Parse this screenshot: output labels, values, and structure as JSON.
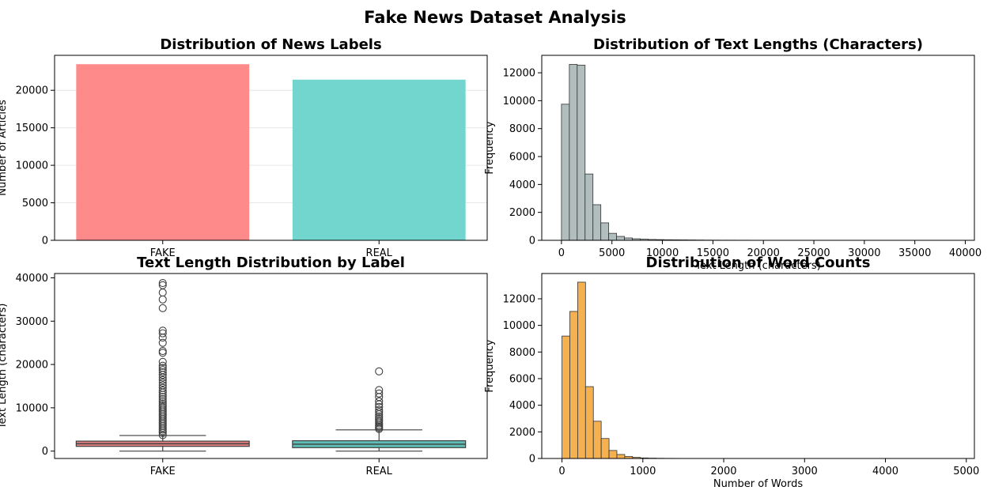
{
  "figure": {
    "title": "Fake News Dataset Analysis"
  },
  "chart_data": [
    {
      "type": "bar",
      "title": "Distribution of News Labels",
      "xlabel": "",
      "ylabel": "Number of Articles",
      "categories": [
        "FAKE",
        "REAL"
      ],
      "values": [
        23480,
        21420
      ],
      "colors": [
        "#ff8a8a",
        "#72d6cf"
      ],
      "ylim": [
        0,
        24660
      ],
      "yticks": [
        0,
        5000,
        10000,
        15000,
        20000
      ],
      "grid": "y"
    },
    {
      "type": "bar",
      "title": "Distribution of Text Lengths (Characters)",
      "xlabel": "Text Length (characters)",
      "ylabel": "Frequency",
      "bin_start": 0,
      "bin_width": 780,
      "values": [
        9750,
        12600,
        12550,
        4750,
        2550,
        1250,
        500,
        280,
        170,
        110,
        80,
        60,
        50,
        40,
        35,
        30,
        25,
        20,
        15,
        12,
        10,
        10,
        8,
        8,
        6,
        5,
        5,
        4,
        4,
        3,
        3,
        2,
        2,
        2,
        2,
        2,
        1,
        1,
        1,
        1,
        1,
        1,
        1,
        1,
        1,
        1,
        1,
        1,
        1,
        1
      ],
      "color": "#b2bebd",
      "xlim": [
        -1950,
        40900
      ],
      "ylim": [
        0,
        13250
      ],
      "xticks": [
        0,
        5000,
        10000,
        15000,
        20000,
        25000,
        30000,
        35000,
        40000
      ],
      "yticks": [
        0,
        2000,
        4000,
        6000,
        8000,
        10000,
        12000
      ]
    },
    {
      "type": "box",
      "title": "Text Length Distribution by Label",
      "xlabel": "",
      "ylabel": "Text Length (characters)",
      "categories": [
        "FAKE",
        "REAL"
      ],
      "colors": [
        "#e58080",
        "#5ebdb5"
      ],
      "boxes": [
        {
          "min": 0,
          "q1": 1100,
          "median": 1700,
          "q3": 2300,
          "whisker_high": 3600,
          "outliers": [
            3700,
            4200,
            4600,
            5000,
            5400,
            5800,
            6200,
            6600,
            7000,
            7400,
            7800,
            8200,
            8600,
            9000,
            9400,
            9800,
            10200,
            10600,
            11000,
            11500,
            12000,
            12500,
            13000,
            13500,
            14000,
            14600,
            15200,
            15800,
            16400,
            17000,
            17600,
            18200,
            18700,
            19200,
            19700,
            20600,
            22700,
            23100,
            25000,
            26200,
            27200,
            27800,
            33000,
            35000,
            36600,
            38300,
            38800
          ]
        },
        {
          "min": 0,
          "q1": 800,
          "median": 1600,
          "q3": 2400,
          "whisker_high": 4900,
          "outliers": [
            5100,
            5400,
            5700,
            6000,
            6400,
            6800,
            7200,
            7600,
            8000,
            8500,
            9000,
            9500,
            10200,
            10800,
            11500,
            12500,
            13300,
            14100,
            18400
          ]
        }
      ],
      "ylim": [
        -1700,
        41000
      ],
      "yticks": [
        0,
        10000,
        20000,
        30000,
        40000
      ]
    },
    {
      "type": "bar",
      "title": "Distribution of Word Counts",
      "xlabel": "Number of Words",
      "ylabel": "Frequency",
      "bin_start": 0,
      "bin_width": 97,
      "values": [
        9200,
        11050,
        13250,
        5400,
        2800,
        1500,
        600,
        300,
        150,
        80,
        40,
        25,
        15,
        10,
        8,
        6,
        5,
        4,
        3,
        3,
        2,
        2,
        2,
        1,
        1,
        1,
        1,
        1,
        1,
        1,
        1,
        1,
        1,
        1,
        1,
        1,
        1,
        1,
        1,
        1,
        1,
        1,
        1,
        1,
        1,
        1,
        1,
        1,
        1,
        1
      ],
      "color": "#f5b04f",
      "xlim": [
        -250,
        5100
      ],
      "ylim": [
        0,
        13900
      ],
      "xticks": [
        0,
        1000,
        2000,
        3000,
        4000,
        5000
      ],
      "yticks": [
        0,
        2000,
        4000,
        6000,
        8000,
        10000,
        12000
      ]
    }
  ]
}
